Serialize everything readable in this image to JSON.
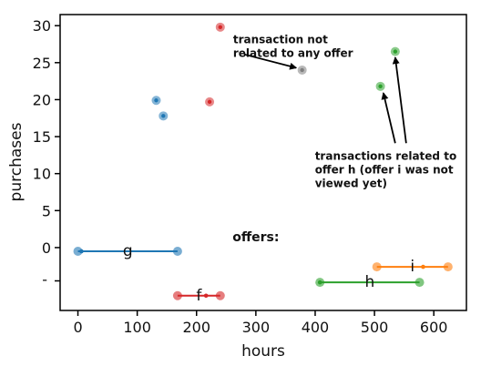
{
  "chart_data": {
    "type": "scatter",
    "xlabel": "hours",
    "ylabel": "purchases",
    "xlim": [
      -30,
      655
    ],
    "ylim": [
      -8.5,
      31.5
    ],
    "x_ticks": [
      0,
      100,
      200,
      300,
      400,
      500,
      600
    ],
    "y_ticks": [
      0,
      5,
      10,
      15,
      20,
      25,
      30
    ],
    "y_tick_labels": [
      "0",
      "5",
      "10",
      "15",
      "20",
      "25",
      "30"
    ],
    "extra_y_tick": {
      "value": -4.5,
      "label": "-"
    },
    "points": [
      {
        "x": 240,
        "y": 29.8,
        "color": "#d62728",
        "offer": "f"
      },
      {
        "x": 378,
        "y": 24.0,
        "color": "#7f7f7f",
        "offer": ""
      },
      {
        "x": 535,
        "y": 26.5,
        "color": "#2ca02c",
        "offer": "h"
      },
      {
        "x": 510,
        "y": 21.8,
        "color": "#2ca02c",
        "offer": "h"
      },
      {
        "x": 132,
        "y": 19.9,
        "color": "#1f77b4",
        "offer": "g"
      },
      {
        "x": 222,
        "y": 19.7,
        "color": "#d62728",
        "offer": "f"
      },
      {
        "x": 144,
        "y": 17.8,
        "color": "#1f77b4",
        "offer": "g"
      }
    ],
    "offers_label": "offers:",
    "offers": [
      {
        "name": "g",
        "color": "#1f77b4",
        "y": -0.5,
        "start": 0,
        "end": 168,
        "viewed": 6
      },
      {
        "name": "f",
        "color": "#d62728",
        "y": -6.5,
        "start": 168,
        "end": 240,
        "viewed": 216
      },
      {
        "name": "h",
        "color": "#2ca02c",
        "y": -4.7,
        "start": 408,
        "end": 576,
        "viewed": 408
      },
      {
        "name": "i",
        "color": "#ff7f0e",
        "y": -2.6,
        "start": 504,
        "end": 624,
        "viewed": 582
      }
    ],
    "annotations": [
      {
        "text_lines": [
          "transaction not",
          "related to any offer"
        ],
        "x": 280,
        "y": 27.6,
        "targets": [
          {
            "x": 368,
            "y": 24.3
          }
        ]
      },
      {
        "text_lines": [
          "transactions related to",
          "offer h (offer i was not",
          "viewed yet)"
        ],
        "x": 418,
        "y": 11.9,
        "targets": [
          {
            "x": 515,
            "y": 20.9
          },
          {
            "x": 535,
            "y": 25.7
          }
        ]
      }
    ]
  }
}
